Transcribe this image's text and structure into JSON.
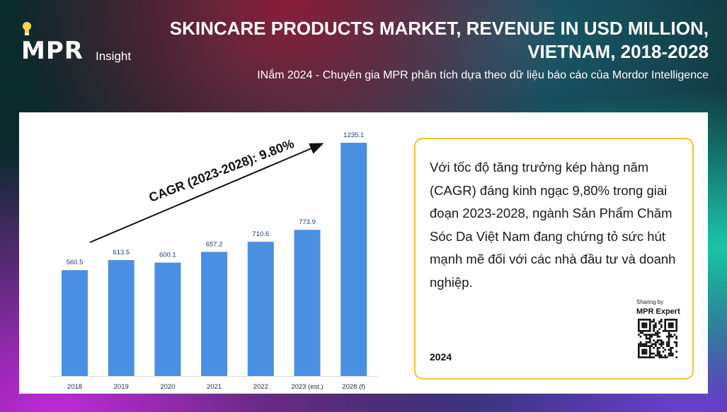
{
  "logo": {
    "brand": "MPR",
    "tagline": "Insight"
  },
  "header": {
    "title": "SKINCARE PRODUCTS MARKET, REVENUE IN USD MILLION, VIETNAM, 2018-2028",
    "subtitle": "INắm 2024 - Chuyên gia MPR phân tích dựa theo dữ liệu báo cáo của Mordor Intelligence"
  },
  "chart_data": {
    "type": "bar",
    "categories": [
      "2018",
      "2019",
      "2020",
      "2021",
      "2022",
      "2023 (est.)",
      "2028 (f)"
    ],
    "values": [
      560.5,
      613.5,
      600.1,
      657.2,
      710.6,
      773.9,
      1235.1
    ],
    "value_labels": [
      "560.5",
      "613.5",
      "600.1",
      "657.2",
      "710.6",
      "773.9",
      "1235.1"
    ],
    "annotation": "CAGR (2023-2028): 9.80%",
    "bar_color": "#4a90e2",
    "grid": false,
    "legend": "none"
  },
  "sidebox": {
    "body": "Với tốc độ tăng trưởng kép hàng năm (CAGR) đáng kinh ngạc 9,80% trong giai đoạn 2023-2028, ngành Sản Phẩm Chăm Sóc Da Việt Nam đang chứng tỏ sức hút mạnh mẽ đối với các nhà đầu tư và doanh nghiệp.",
    "year": "2024",
    "sharing_by": "Sharing by",
    "expert": "MPR Expert",
    "accent": "#f2c230"
  }
}
